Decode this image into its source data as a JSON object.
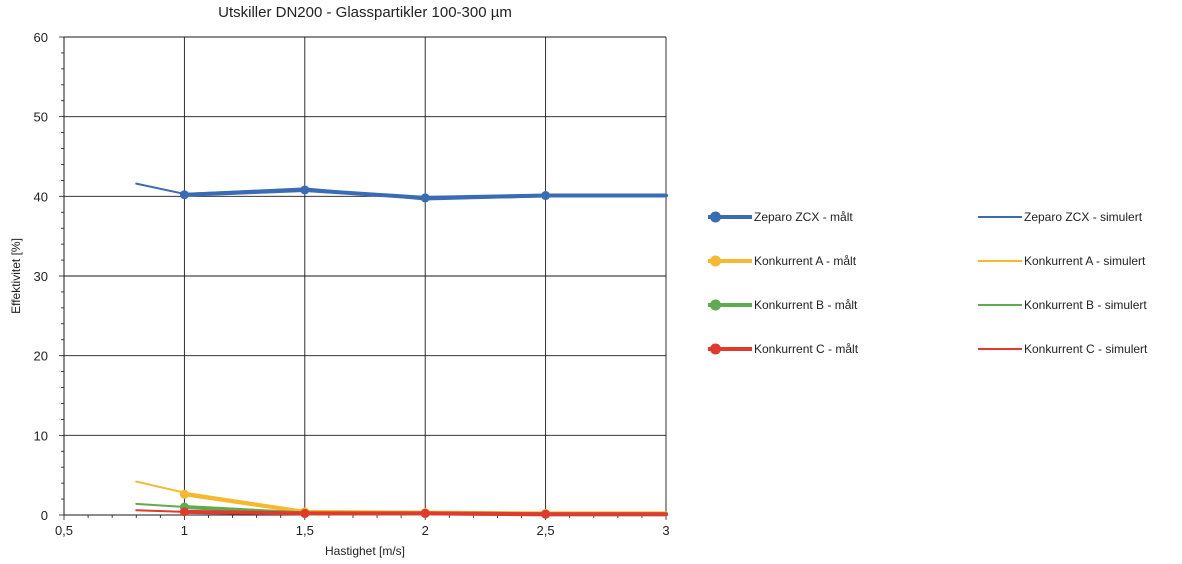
{
  "chart_data": {
    "type": "line",
    "title": "Utskiller DN200 - Glasspartikler 100-300 µm",
    "xlabel": "Hastighet [m/s]",
    "ylabel": "Effektivitet [%]",
    "xlim": [
      0.5,
      3
    ],
    "ylim": [
      0,
      60
    ],
    "x_ticks": [
      0.5,
      1,
      1.5,
      2,
      2.5,
      3
    ],
    "x_tick_labels": [
      "0,5",
      "1",
      "1,5",
      "2",
      "2,5",
      "3"
    ],
    "y_ticks": [
      0,
      10,
      20,
      30,
      40,
      50,
      60
    ],
    "y_tick_labels": [
      "0",
      "10",
      "20",
      "30",
      "40",
      "50",
      "60"
    ],
    "grid": true,
    "legend_position": "right",
    "series": [
      {
        "name": "Zeparo ZCX - målt",
        "color": "#3a6cb5",
        "style": "measured",
        "x": [
          1,
          1.5,
          2,
          2.5,
          3
        ],
        "y": [
          40.2,
          40.8,
          39.8,
          40.1,
          40.1
        ]
      },
      {
        "name": "Zeparo ZCX - simulert",
        "color": "#3a6cb5",
        "style": "simulated",
        "x": [
          0.8,
          1,
          1.5,
          2,
          2.5,
          3
        ],
        "y": [
          41.6,
          40.3,
          41.0,
          39.6,
          40.0,
          40.0
        ]
      },
      {
        "name": "Konkurrent A - målt",
        "color": "#f5b82e",
        "style": "measured",
        "x": [
          1,
          1.5,
          2,
          2.5,
          3
        ],
        "y": [
          2.6,
          0.4,
          0.3,
          0.2,
          0.2
        ]
      },
      {
        "name": "Konkurrent A - simulert",
        "color": "#f5b82e",
        "style": "simulated",
        "x": [
          0.8,
          1,
          1.5,
          2,
          2.5,
          3
        ],
        "y": [
          4.2,
          2.8,
          0.5,
          0.3,
          0.2,
          0.2
        ]
      },
      {
        "name": "Konkurrent B - målt",
        "color": "#5fac4e",
        "style": "measured",
        "x": [
          1,
          1.5,
          2,
          2.5,
          3
        ],
        "y": [
          1.0,
          0.2,
          0.2,
          0.1,
          0.1
        ]
      },
      {
        "name": "Konkurrent B - simulert",
        "color": "#5fac4e",
        "style": "simulated",
        "x": [
          0.8,
          1,
          1.5,
          2,
          2.5,
          3
        ],
        "y": [
          1.4,
          1.0,
          0.2,
          0.1,
          0.1,
          0.1
        ]
      },
      {
        "name": "Konkurrent C - målt",
        "color": "#e03a2f",
        "style": "measured",
        "x": [
          1,
          1.5,
          2,
          2.5,
          3
        ],
        "y": [
          0.4,
          0.2,
          0.2,
          0.1,
          0.1
        ]
      },
      {
        "name": "Konkurrent C - simulert",
        "color": "#e03a2f",
        "style": "simulated",
        "x": [
          0.8,
          1,
          1.5,
          2,
          2.5,
          3
        ],
        "y": [
          0.6,
          0.4,
          0.2,
          0.1,
          0.1,
          0.1
        ]
      }
    ]
  }
}
